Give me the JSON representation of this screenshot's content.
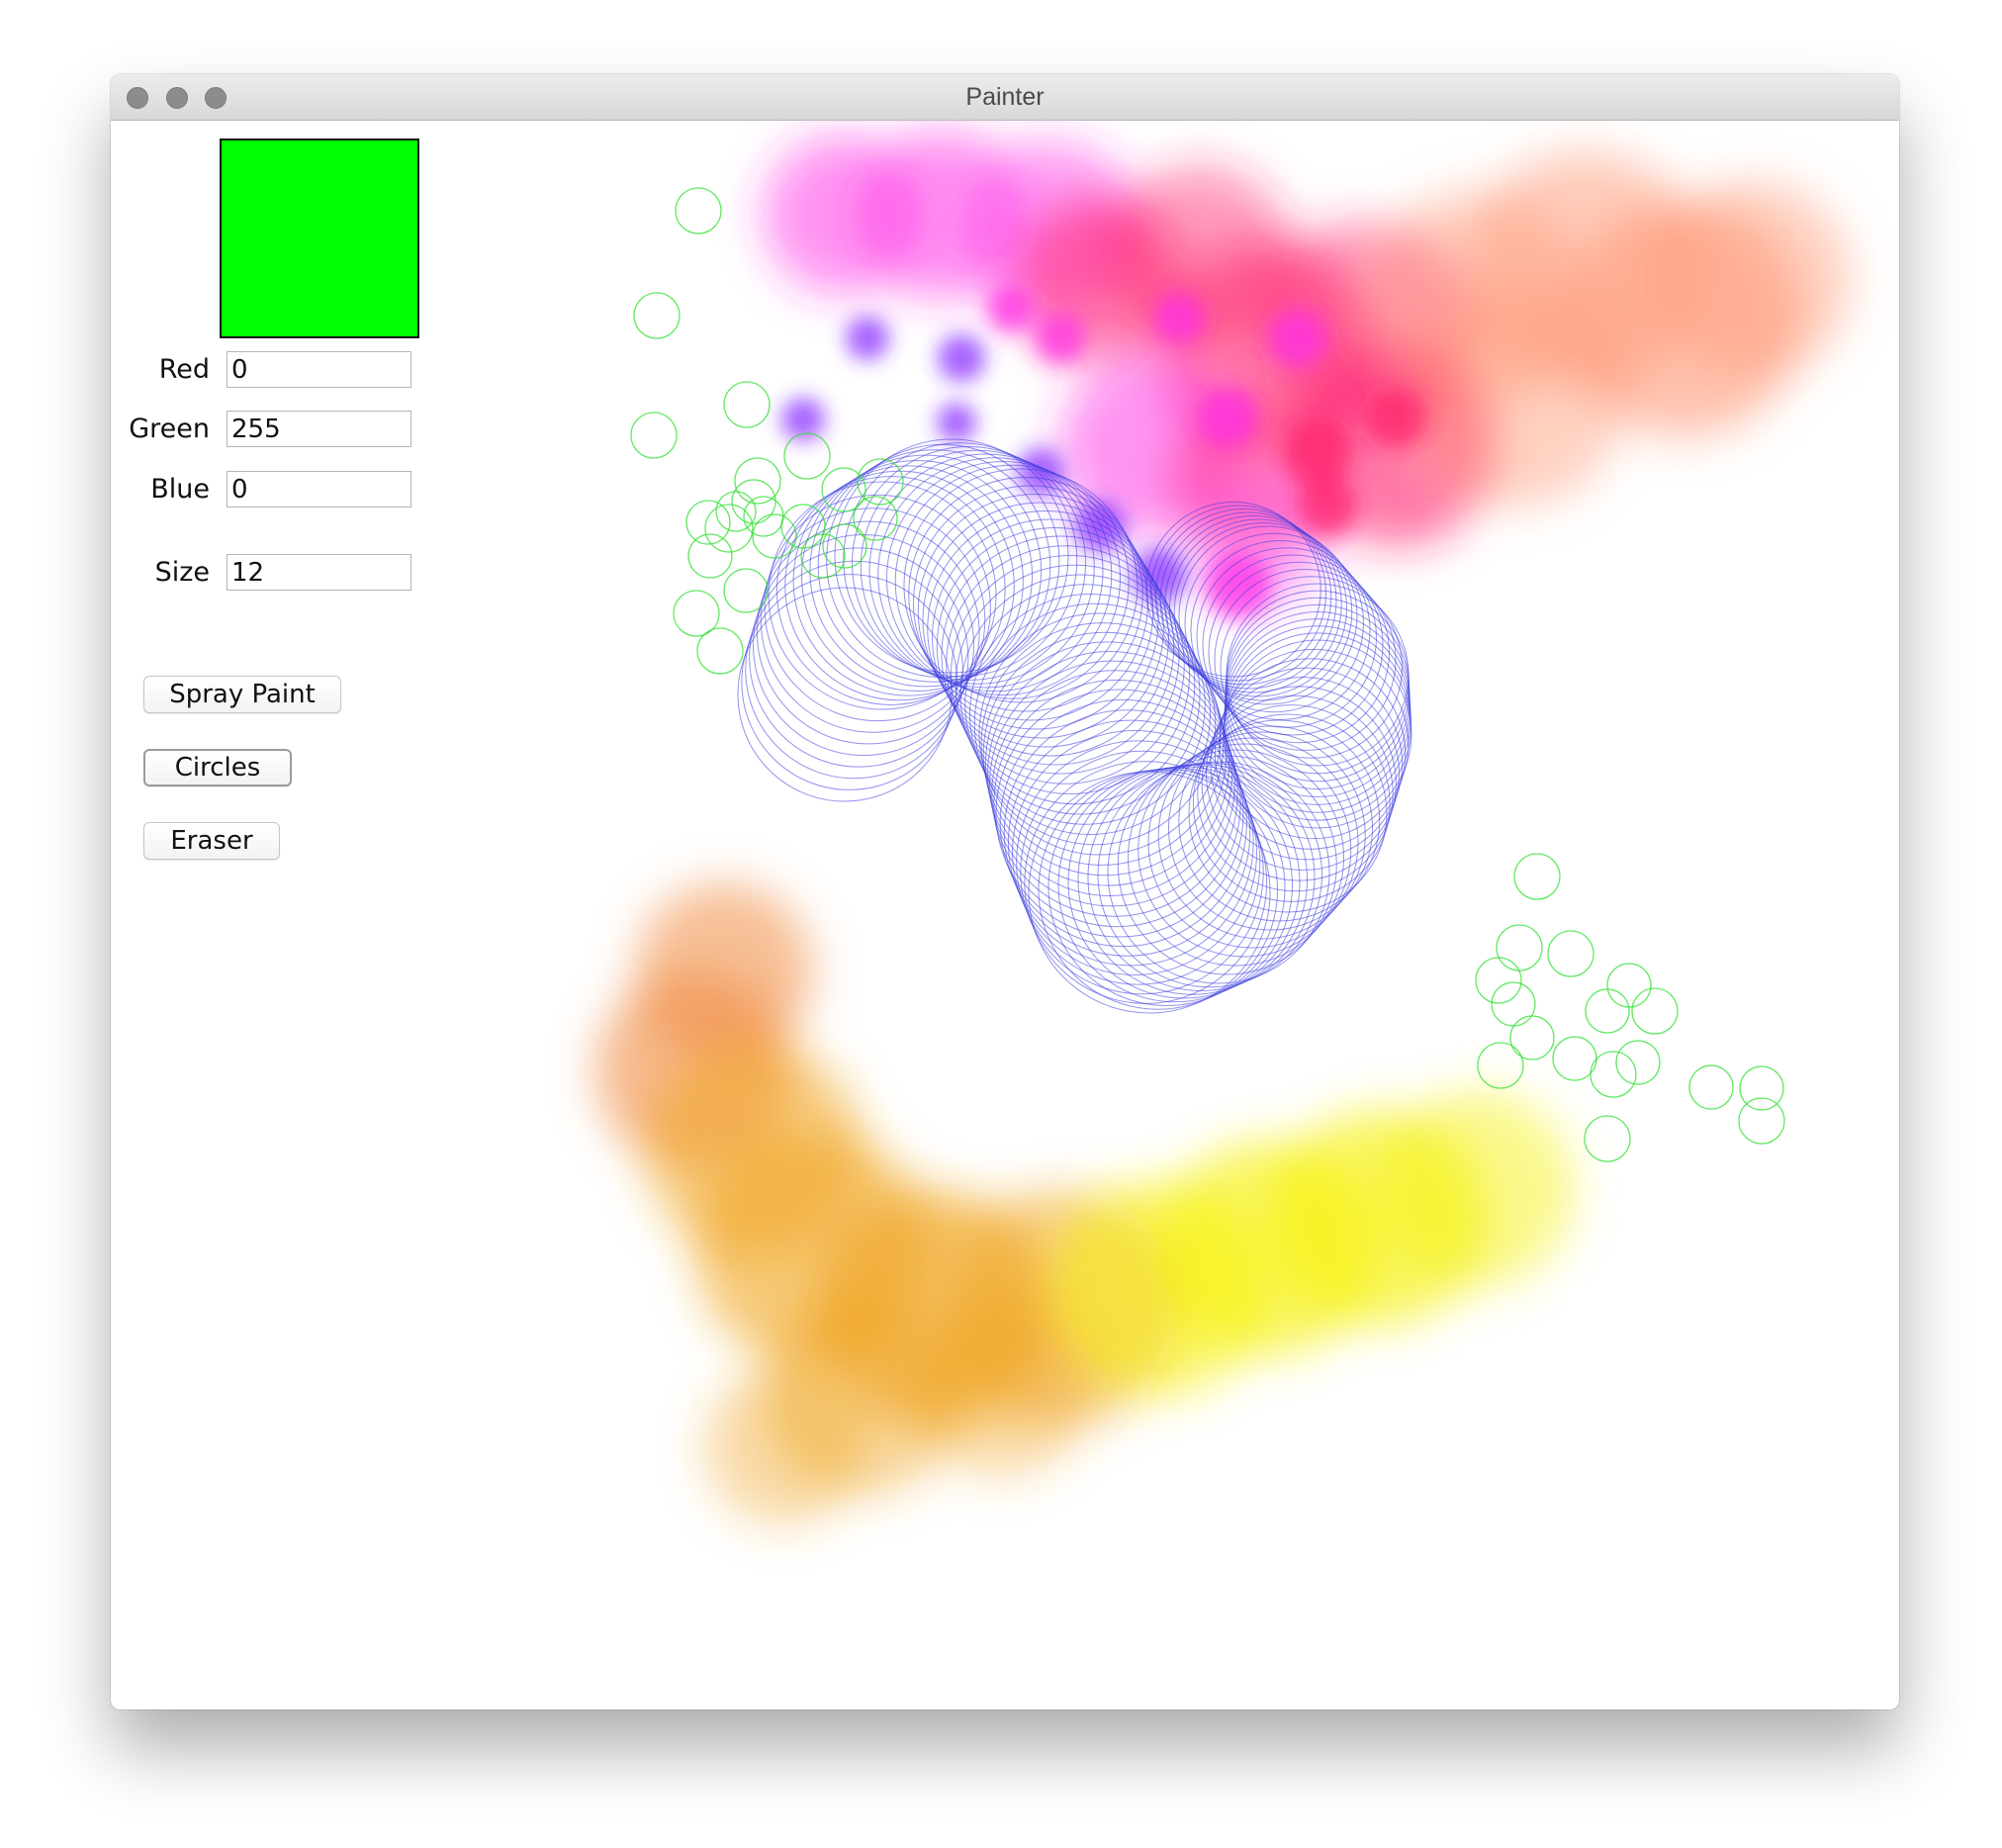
{
  "window": {
    "title": "Painter"
  },
  "color_preview": {
    "color": "#00ff00"
  },
  "fields": {
    "red": {
      "label": "Red",
      "value": "0"
    },
    "green": {
      "label": "Green",
      "value": "255"
    },
    "blue": {
      "label": "Blue",
      "value": "0"
    },
    "size": {
      "label": "Size",
      "value": "12"
    }
  },
  "tools": {
    "spray_paint": "Spray Paint",
    "circles": "Circles",
    "eraser": "Eraser",
    "active": "circles"
  },
  "canvas": {
    "spray_colors": [
      "#8a2cff",
      "#ff2ee6",
      "#ff1f6e",
      "#ff9a78",
      "#f08a40",
      "#f0a520",
      "#f5f000"
    ],
    "circle_colors": {
      "blue": "#3a3ae0",
      "green": "#2ee02e"
    }
  }
}
